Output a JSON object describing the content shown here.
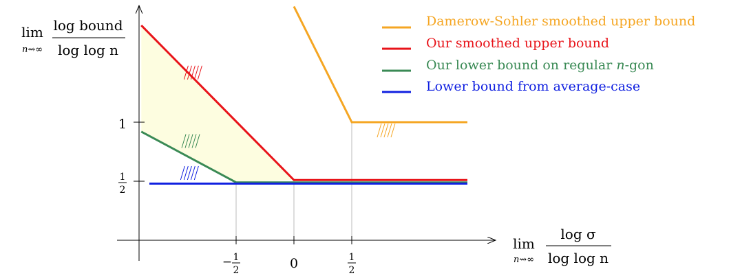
{
  "colors": {
    "orange": "#f5a623",
    "red": "#e8141a",
    "green": "#3a8a55",
    "blue": "#1020e0",
    "fill": "#fdfde0",
    "grid": "#bbbbbb",
    "axis": "#000000"
  },
  "y_axis_label": {
    "lim": "lim",
    "lim_sub": "n⇝∞",
    "numerator": "log bound",
    "denominator": "log log n"
  },
  "x_axis_label": {
    "lim": "lim",
    "lim_sub": "n⇝∞",
    "numerator": "log σ",
    "denominator": "log log n"
  },
  "chart_data": {
    "type": "line",
    "x_ticks": [
      {
        "value": -0.5,
        "label_num": "1",
        "label_den": "2",
        "sign": "−"
      },
      {
        "value": 0,
        "label": "0"
      },
      {
        "value": 0.5,
        "label_num": "1",
        "label_den": "2",
        "sign": ""
      }
    ],
    "y_ticks": [
      {
        "value": 0.5,
        "label_num": "1",
        "label_den": "2"
      },
      {
        "value": 1,
        "label": "1"
      }
    ],
    "series": [
      {
        "name": "Damerow-Sohler smoothed upper bound",
        "color": "#f5a623",
        "points": [
          [
            0,
            1.98
          ],
          [
            0.5,
            1
          ],
          [
            1.5,
            1
          ]
        ]
      },
      {
        "name": "Our smoothed upper bound",
        "color": "#e8141a",
        "points": [
          [
            -1.32,
            1.82
          ],
          [
            0,
            0.51
          ],
          [
            1.5,
            0.51
          ]
        ]
      },
      {
        "name": "Our lower bound on regular n-gon",
        "color": "#3a8a55",
        "points": [
          [
            -1.32,
            0.92
          ],
          [
            -0.5,
            0.49
          ],
          [
            1.5,
            0.49
          ]
        ]
      },
      {
        "name": "Lower bound from average-case",
        "color": "#1020e0",
        "points": [
          [
            -1.25,
            0.48
          ],
          [
            1.5,
            0.48
          ]
        ]
      }
    ]
  },
  "legend": [
    {
      "label": "Damerow-Sohler smoothed upper bound",
      "color": "#f5a623"
    },
    {
      "label": "Our smoothed upper bound",
      "color": "#e8141a"
    },
    {
      "label_prefix": "Our lower bound on regular ",
      "label_var": "n",
      "label_suffix": "-gon",
      "color": "#3a8a55"
    },
    {
      "label": "Lower bound from average-case",
      "color": "#1020e0"
    }
  ]
}
